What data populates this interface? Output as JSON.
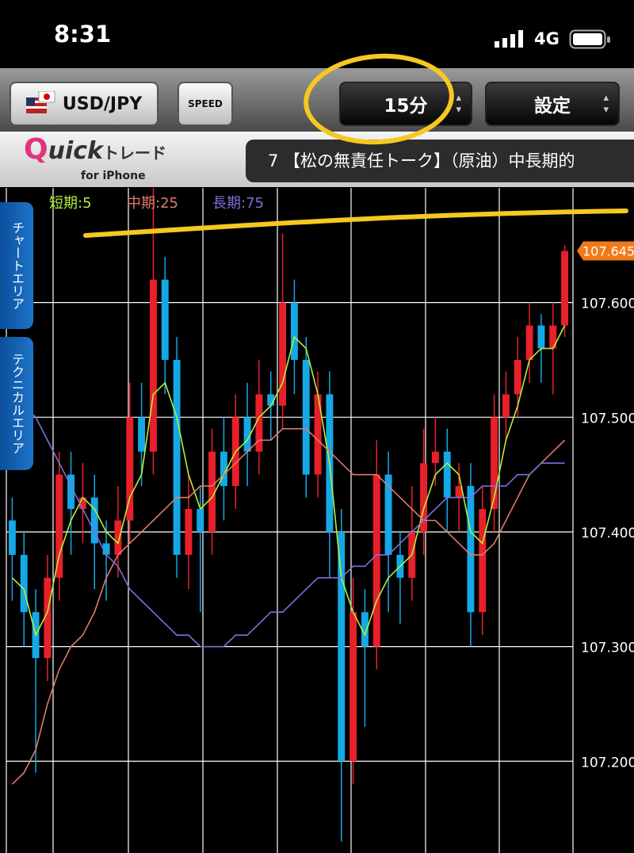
{
  "status_bar": {
    "time": "8:31",
    "network": "4G"
  },
  "toolbar": {
    "pair": "USD/JPY",
    "speed": "SPEED",
    "timeframe": "15分",
    "settings": "設定"
  },
  "banner": {
    "logo_q": "Q",
    "logo_uick": "uick",
    "logo_trade": "トレード",
    "logo_sub": "for iPhone",
    "ticker": "7 【松の無責任トーク】（原油）中長期的"
  },
  "side_tabs": [
    "チャートエリア",
    "テクニカルエリア"
  ],
  "chart_data": {
    "type": "candlestick",
    "up_color": "#e8202a",
    "down_color": "#14a8e6",
    "open": [
      107.41,
      107.38,
      107.33,
      107.29,
      107.36,
      107.45,
      107.42,
      107.43,
      107.39,
      107.38,
      107.41,
      107.5,
      107.47,
      107.62,
      107.55,
      107.38,
      107.42,
      107.4,
      107.47,
      107.44,
      107.5,
      107.47,
      107.52,
      107.51,
      107.6,
      107.55,
      107.45,
      107.52,
      107.4,
      107.2,
      107.33,
      107.3,
      107.45,
      107.38,
      107.36,
      107.4,
      107.46,
      107.47,
      107.43,
      107.44,
      107.33,
      107.42,
      107.5,
      107.52,
      107.55,
      107.58,
      107.56,
      107.58
    ],
    "high": [
      107.43,
      107.4,
      107.35,
      107.38,
      107.47,
      107.47,
      107.46,
      107.45,
      107.41,
      107.44,
      107.53,
      107.53,
      107.7,
      107.64,
      107.57,
      107.45,
      107.44,
      107.49,
      107.5,
      107.52,
      107.53,
      107.55,
      107.54,
      107.66,
      107.62,
      107.57,
      107.54,
      107.54,
      107.42,
      107.36,
      107.35,
      107.48,
      107.47,
      107.4,
      107.44,
      107.49,
      107.5,
      107.49,
      107.46,
      107.46,
      107.44,
      107.52,
      107.54,
      107.57,
      107.6,
      107.59,
      107.6,
      107.65
    ],
    "low": [
      107.34,
      107.3,
      107.19,
      107.27,
      107.34,
      107.38,
      107.39,
      107.35,
      107.34,
      107.36,
      107.39,
      107.44,
      107.45,
      107.52,
      107.36,
      107.35,
      107.33,
      107.38,
      107.41,
      107.42,
      107.44,
      107.45,
      107.48,
      107.49,
      107.52,
      107.43,
      107.43,
      107.36,
      107.13,
      107.18,
      107.23,
      107.28,
      107.33,
      107.32,
      107.34,
      107.38,
      107.44,
      107.4,
      107.4,
      107.3,
      107.31,
      107.4,
      107.48,
      107.5,
      107.53,
      107.53,
      107.52,
      107.57
    ],
    "close": [
      107.38,
      107.33,
      107.29,
      107.36,
      107.45,
      107.42,
      107.43,
      107.39,
      107.38,
      107.41,
      107.5,
      107.47,
      107.62,
      107.55,
      107.38,
      107.42,
      107.4,
      107.47,
      107.44,
      107.5,
      107.47,
      107.52,
      107.51,
      107.6,
      107.55,
      107.45,
      107.52,
      107.4,
      107.2,
      107.33,
      107.3,
      107.45,
      107.38,
      107.36,
      107.4,
      107.46,
      107.47,
      107.43,
      107.44,
      107.33,
      107.42,
      107.5,
      107.52,
      107.55,
      107.58,
      107.56,
      107.58,
      107.645
    ],
    "series": [
      {
        "name": "短期:5",
        "color": "#b4f03a",
        "values": [
          107.36,
          107.35,
          107.31,
          107.33,
          107.38,
          107.41,
          107.43,
          107.42,
          107.4,
          107.39,
          107.43,
          107.45,
          107.52,
          107.53,
          107.5,
          107.45,
          107.42,
          107.43,
          107.45,
          107.47,
          107.48,
          107.5,
          107.51,
          107.53,
          107.57,
          107.56,
          107.52,
          107.46,
          107.36,
          107.33,
          107.31,
          107.34,
          107.36,
          107.37,
          107.38,
          107.42,
          107.45,
          107.46,
          107.45,
          107.4,
          107.39,
          107.43,
          107.48,
          107.51,
          107.55,
          107.56,
          107.56,
          107.58
        ]
      },
      {
        "name": "中期:25",
        "color": "#e07a6a",
        "values": [
          107.18,
          107.19,
          107.21,
          107.25,
          107.28,
          107.3,
          107.31,
          107.33,
          107.36,
          107.38,
          107.39,
          107.4,
          107.41,
          107.42,
          107.43,
          107.43,
          107.44,
          107.44,
          107.45,
          107.46,
          107.47,
          107.48,
          107.48,
          107.49,
          107.49,
          107.49,
          107.48,
          107.47,
          107.46,
          107.45,
          107.45,
          107.45,
          107.44,
          107.43,
          107.42,
          107.41,
          107.41,
          107.4,
          107.39,
          107.38,
          107.38,
          107.39,
          107.41,
          107.43,
          107.45,
          107.46,
          107.47,
          107.48
        ]
      },
      {
        "name": "長期:75",
        "color": "#7c70d8",
        "values": [
          107.52,
          107.51,
          107.5,
          107.48,
          107.46,
          107.44,
          107.42,
          107.4,
          107.38,
          107.37,
          107.35,
          107.34,
          107.33,
          107.32,
          107.31,
          107.31,
          107.3,
          107.3,
          107.3,
          107.31,
          107.31,
          107.32,
          107.33,
          107.33,
          107.34,
          107.35,
          107.36,
          107.36,
          107.36,
          107.37,
          107.37,
          107.38,
          107.38,
          107.39,
          107.4,
          107.41,
          107.42,
          107.43,
          107.43,
          107.43,
          107.44,
          107.44,
          107.44,
          107.45,
          107.45,
          107.46,
          107.46,
          107.46
        ]
      }
    ],
    "ylim": [
      107.12,
      107.7
    ],
    "yticks": [
      {
        "value": 107.2,
        "label": "107.200"
      },
      {
        "value": 107.3,
        "label": "107.300"
      },
      {
        "value": 107.4,
        "label": "107.400"
      },
      {
        "value": 107.5,
        "label": "107.500"
      },
      {
        "value": 107.6,
        "label": "107.600"
      }
    ],
    "grid": true
  }
}
